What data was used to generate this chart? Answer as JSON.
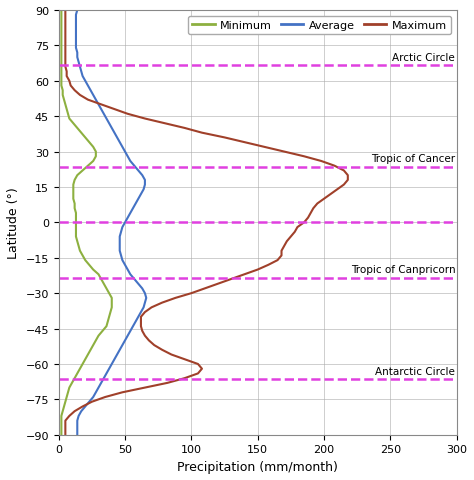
{
  "title": "",
  "xlabel": "Precipitation (mm/month)",
  "ylabel": "Latitude (°)",
  "xlim": [
    0,
    300
  ],
  "ylim": [
    -90,
    90
  ],
  "yticks": [
    -90,
    -75,
    -60,
    -45,
    -30,
    -15,
    0,
    15,
    30,
    45,
    60,
    75,
    90
  ],
  "xticks": [
    0,
    50,
    100,
    150,
    200,
    250,
    300
  ],
  "dashed_lines": [
    66.5,
    23.5,
    0,
    -23.5,
    -66.5
  ],
  "dashed_labels": [
    "Arctic Circle",
    "Tropic of Cancer",
    "",
    "Tropic of Canpricorn",
    "Antarctic Circle"
  ],
  "dashed_label_lats": [
    66.5,
    23.5,
    0,
    -23.5,
    -66.5
  ],
  "dashed_color": "#E040E0",
  "legend_labels": [
    "Minimum",
    "Average",
    "Maximum"
  ],
  "legend_colors": [
    "#8DB040",
    "#4472C4",
    "#A0402A"
  ],
  "latitudes": [
    -90,
    -88,
    -86,
    -84,
    -82,
    -80,
    -78,
    -76,
    -74,
    -72,
    -70,
    -68,
    -66,
    -64,
    -62,
    -60,
    -58,
    -56,
    -54,
    -52,
    -50,
    -48,
    -46,
    -44,
    -42,
    -40,
    -38,
    -36,
    -34,
    -32,
    -30,
    -28,
    -26,
    -24,
    -22,
    -20,
    -18,
    -16,
    -14,
    -12,
    -10,
    -8,
    -6,
    -4,
    -2,
    0,
    2,
    4,
    6,
    8,
    10,
    12,
    14,
    16,
    18,
    20,
    22,
    24,
    26,
    28,
    30,
    32,
    34,
    36,
    38,
    40,
    42,
    44,
    46,
    48,
    50,
    52,
    54,
    56,
    58,
    60,
    62,
    64,
    66,
    68,
    70,
    72,
    74,
    76,
    78,
    80,
    82,
    84,
    86,
    88,
    90
  ],
  "minimum": [
    2,
    2,
    2,
    2,
    2,
    3,
    4,
    5,
    6,
    7,
    8,
    10,
    12,
    14,
    16,
    18,
    20,
    22,
    24,
    26,
    28,
    30,
    33,
    36,
    37,
    38,
    39,
    40,
    40,
    40,
    38,
    36,
    34,
    32,
    30,
    26,
    23,
    20,
    18,
    16,
    15,
    14,
    13,
    13,
    13,
    13,
    13,
    13,
    12,
    12,
    11,
    11,
    11,
    11,
    12,
    14,
    18,
    22,
    26,
    28,
    28,
    26,
    23,
    20,
    17,
    14,
    11,
    8,
    7,
    6,
    5,
    4,
    3,
    3,
    2,
    2,
    2,
    2,
    2,
    2,
    2,
    2,
    2,
    2,
    2,
    2,
    2,
    2,
    2,
    2,
    2
  ],
  "average": [
    14,
    14,
    14,
    14,
    15,
    17,
    20,
    23,
    26,
    28,
    30,
    32,
    34,
    36,
    38,
    40,
    42,
    44,
    46,
    48,
    50,
    52,
    54,
    56,
    58,
    60,
    62,
    64,
    65,
    66,
    65,
    63,
    60,
    57,
    54,
    52,
    50,
    48,
    47,
    46,
    46,
    46,
    46,
    47,
    48,
    50,
    52,
    54,
    56,
    58,
    60,
    62,
    64,
    65,
    65,
    63,
    60,
    57,
    54,
    52,
    50,
    48,
    46,
    44,
    42,
    40,
    38,
    36,
    34,
    32,
    30,
    28,
    26,
    24,
    22,
    20,
    18,
    17,
    16,
    15,
    14,
    14,
    13,
    13,
    13,
    13,
    13,
    13,
    13,
    13,
    14
  ],
  "maximum": [
    5,
    5,
    5,
    5,
    8,
    12,
    18,
    25,
    35,
    48,
    65,
    82,
    95,
    105,
    108,
    105,
    95,
    85,
    78,
    72,
    68,
    65,
    63,
    62,
    62,
    62,
    65,
    70,
    78,
    88,
    100,
    110,
    120,
    130,
    140,
    150,
    158,
    165,
    168,
    168,
    170,
    172,
    175,
    178,
    180,
    185,
    188,
    190,
    192,
    195,
    200,
    205,
    210,
    215,
    218,
    218,
    215,
    208,
    198,
    185,
    170,
    155,
    140,
    125,
    108,
    95,
    80,
    65,
    52,
    42,
    32,
    22,
    16,
    12,
    9,
    8,
    6,
    6,
    5,
    5,
    5,
    5,
    5,
    5,
    5,
    5,
    5,
    5,
    5,
    5,
    5
  ]
}
